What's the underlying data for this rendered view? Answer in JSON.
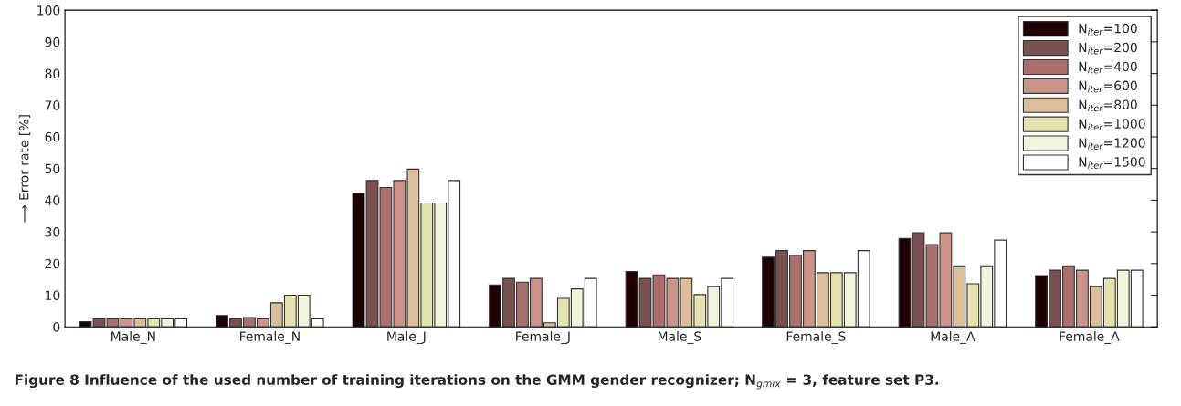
{
  "chart_data": {
    "type": "bar",
    "categories": [
      "Male_N",
      "Female_N",
      "Male_J",
      "Female_J",
      "Male_S",
      "Female_S",
      "Male_A",
      "Female_A"
    ],
    "series": [
      {
        "name": "N$_{iter}$=100",
        "color": "#1e0002",
        "values": [
          1.6,
          3.6,
          42.2,
          13.2,
          17.5,
          22,
          27.9,
          16.2
        ]
      },
      {
        "name": "N$_{iter}$=200",
        "color": "#7a5050",
        "values": [
          2.5,
          2.5,
          46.2,
          15.3,
          15.3,
          24.1,
          29.7,
          17.9
        ]
      },
      {
        "name": "N$_{iter}$=400",
        "color": "#ab6f6d",
        "values": [
          2.5,
          2.9,
          44,
          14.1,
          16.4,
          22.6,
          26,
          19
        ]
      },
      {
        "name": "N$_{iter}$=600",
        "color": "#cc958a",
        "values": [
          2.5,
          2.5,
          46.2,
          15.3,
          15.3,
          24.1,
          29.7,
          17.9
        ]
      },
      {
        "name": "N$_{iter}$=800",
        "color": "#dbbf9c",
        "values": [
          2.5,
          7.6,
          49.8,
          1.3,
          15.3,
          17.1,
          19,
          12.7
        ]
      },
      {
        "name": "N$_{iter}$=1000",
        "color": "#e5e2b0",
        "values": [
          2.5,
          10,
          39.1,
          9,
          10.2,
          17.1,
          13.6,
          15.3
        ]
      },
      {
        "name": "N$_{iter}$=1200",
        "color": "#f3f2da",
        "values": [
          2.5,
          10,
          39.1,
          12,
          12.7,
          17.1,
          19,
          17.9
        ]
      },
      {
        "name": "N$_{iter}$=1500",
        "color": "#ffffff",
        "values": [
          2.5,
          2.5,
          46.2,
          15.3,
          15.3,
          24.1,
          27.4,
          17.9
        ]
      }
    ],
    "ylabel": "⟶ Error rate [%]",
    "ylim": [
      0,
      100
    ],
    "yticks": [
      0,
      10,
      20,
      30,
      40,
      50,
      60,
      70,
      80,
      90,
      100
    ],
    "legend": "top right",
    "grid": false,
    "annotations": [
      "Figure 8 Influence of the used number of training iterations on the GMM gender recognizer; N$_{gmix}$ = 3, feature set P3."
    ]
  }
}
